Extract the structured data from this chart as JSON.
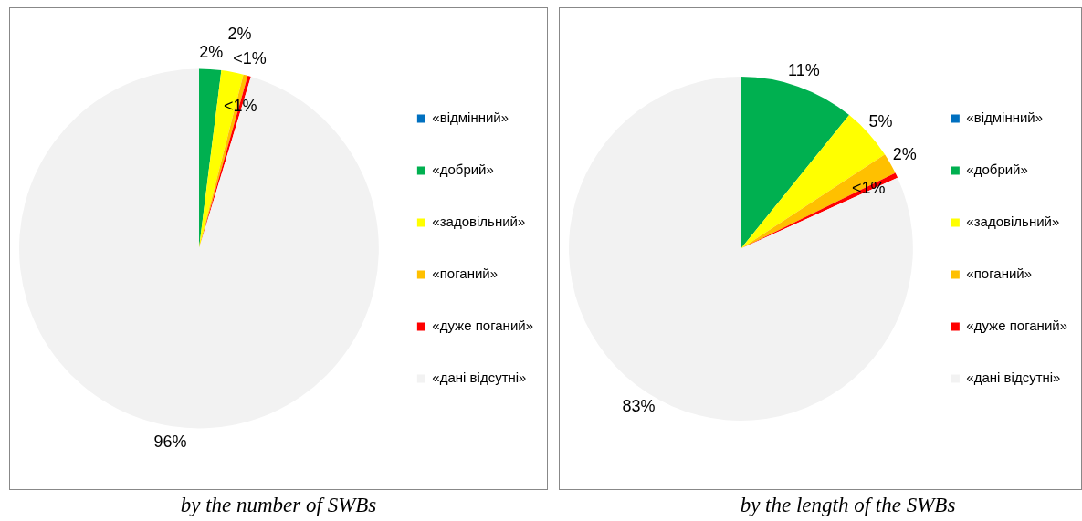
{
  "chart_data": [
    {
      "type": "pie",
      "title": "by the number of SWBs",
      "categories": [
        "«відмінний»",
        "«добрий»",
        "«задовільний»",
        "«поганий»",
        "«дуже поганий»",
        "«дані відсутні»"
      ],
      "values": [
        0,
        2,
        2,
        0.4,
        0.3,
        96
      ],
      "value_labels": [
        null,
        "2%",
        "2%",
        "<1%",
        "<1%",
        "96%"
      ],
      "colors": [
        "#0070c0",
        "#00b050",
        "#ffff00",
        "#ffc000",
        "#ff0000",
        "#f2f2f2"
      ],
      "legend": "right"
    },
    {
      "type": "pie",
      "title": "by the length of the SWBs",
      "categories": [
        "«відмінний»",
        "«добрий»",
        "«задовільний»",
        "«поганий»",
        "«дуже поганий»",
        "«дані відсутні»"
      ],
      "values": [
        0,
        11,
        5,
        2,
        0.5,
        83
      ],
      "value_labels": [
        null,
        "11%",
        "5%",
        "2%",
        "<1%",
        "83%"
      ],
      "colors": [
        "#0070c0",
        "#00b050",
        "#ffff00",
        "#ffc000",
        "#ff0000",
        "#f2f2f2"
      ],
      "legend": "right"
    }
  ]
}
